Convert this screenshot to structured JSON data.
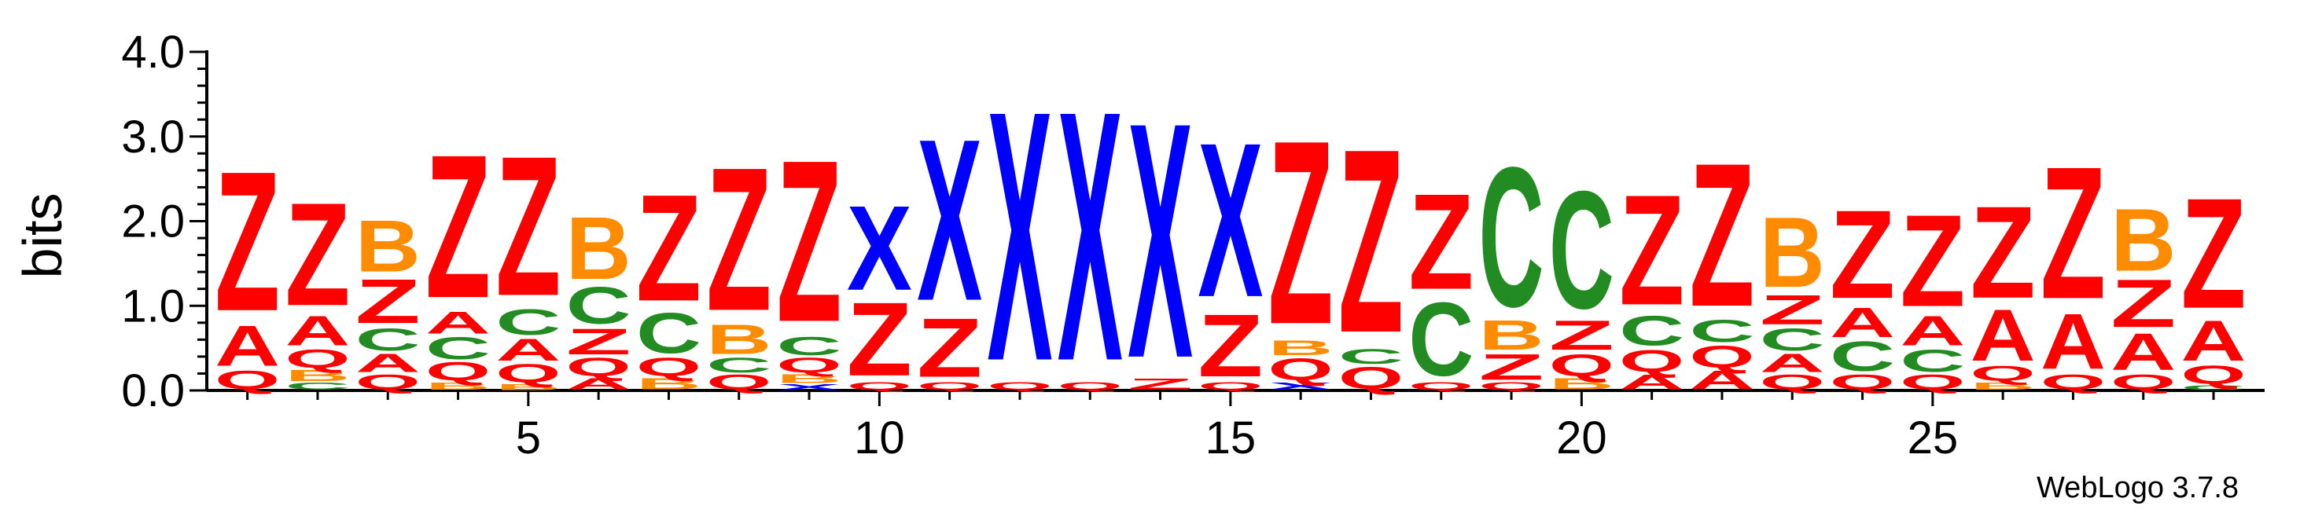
{
  "chart_data": {
    "type": "sequence-logo",
    "ylabel": "bits",
    "xlabel": "",
    "ylim": [
      0,
      4
    ],
    "yticks": [
      "0.0",
      "1.0",
      "2.0",
      "3.0",
      "4.0"
    ],
    "xticks": [
      5,
      10,
      15,
      20,
      25
    ],
    "positions": [
      {
        "pos": 1,
        "stack": [
          [
            "Q",
            0.25
          ],
          [
            "A",
            0.55
          ],
          [
            "Z",
            1.9
          ]
        ]
      },
      {
        "pos": 2,
        "stack": [
          [
            "C",
            0.1
          ],
          [
            "B",
            0.15
          ],
          [
            "Q",
            0.25
          ],
          [
            "A",
            0.4
          ],
          [
            "Z",
            1.4
          ]
        ]
      },
      {
        "pos": 3,
        "stack": [
          [
            "Q",
            0.2
          ],
          [
            "A",
            0.25
          ],
          [
            "C",
            0.3
          ],
          [
            "Z",
            0.6
          ],
          [
            "B",
            0.7
          ]
        ]
      },
      {
        "pos": 4,
        "stack": [
          [
            "B",
            0.1
          ],
          [
            "Q",
            0.25
          ],
          [
            "C",
            0.3
          ],
          [
            "A",
            0.3
          ],
          [
            "Z",
            1.95
          ]
        ]
      },
      {
        "pos": 5,
        "stack": [
          [
            "B",
            0.08
          ],
          [
            "Q",
            0.25
          ],
          [
            "A",
            0.3
          ],
          [
            "C",
            0.35
          ],
          [
            "Z",
            1.9
          ]
        ]
      },
      {
        "pos": 6,
        "stack": [
          [
            "A",
            0.15
          ],
          [
            "Q",
            0.25
          ],
          [
            "Z",
            0.35
          ],
          [
            "C",
            0.5
          ],
          [
            "B",
            0.85
          ]
        ]
      },
      {
        "pos": 7,
        "stack": [
          [
            "B",
            0.15
          ],
          [
            "Q",
            0.25
          ],
          [
            "C",
            0.55
          ],
          [
            "Z",
            1.45
          ]
        ]
      },
      {
        "pos": 8,
        "stack": [
          [
            "Q",
            0.2
          ],
          [
            "C",
            0.2
          ],
          [
            "B",
            0.4
          ],
          [
            "Z",
            1.95
          ]
        ]
      },
      {
        "pos": 9,
        "stack": [
          [
            "X",
            0.08
          ],
          [
            "B",
            0.12
          ],
          [
            "Q",
            0.2
          ],
          [
            "C",
            0.25
          ],
          [
            "Z",
            2.2
          ]
        ]
      },
      {
        "pos": 10,
        "stack": [
          [
            "Q",
            0.1
          ],
          [
            "Z",
            1.0
          ],
          [
            "X",
            1.15
          ]
        ]
      },
      {
        "pos": 11,
        "stack": [
          [
            "Q",
            0.1
          ],
          [
            "Z",
            0.8
          ],
          [
            "X",
            2.2
          ]
        ]
      },
      {
        "pos": 12,
        "stack": [
          [
            "Q",
            0.1
          ],
          [
            "X",
            3.4
          ]
        ]
      },
      {
        "pos": 13,
        "stack": [
          [
            "Q",
            0.1
          ],
          [
            "X",
            3.4
          ]
        ]
      },
      {
        "pos": 14,
        "stack": [
          [
            "Z",
            0.15
          ],
          [
            "X",
            3.2
          ]
        ]
      },
      {
        "pos": 15,
        "stack": [
          [
            "Q",
            0.1
          ],
          [
            "Z",
            0.85
          ],
          [
            "X",
            2.1
          ]
        ]
      },
      {
        "pos": 16,
        "stack": [
          [
            "X",
            0.1
          ],
          [
            "Q",
            0.3
          ],
          [
            "B",
            0.2
          ],
          [
            "Z",
            2.5
          ]
        ]
      },
      {
        "pos": 17,
        "stack": [
          [
            "Q",
            0.3
          ],
          [
            "C",
            0.2
          ],
          [
            "Z",
            2.5
          ]
        ]
      },
      {
        "pos": 18,
        "stack": [
          [
            "Q",
            0.1
          ],
          [
            "C",
            1.0
          ],
          [
            "Z",
            1.3
          ]
        ]
      },
      {
        "pos": 19,
        "stack": [
          [
            "Q",
            0.1
          ],
          [
            "Z",
            0.35
          ],
          [
            "B",
            0.4
          ],
          [
            "C",
            1.9
          ]
        ]
      },
      {
        "pos": 20,
        "stack": [
          [
            "B",
            0.15
          ],
          [
            "Q",
            0.3
          ],
          [
            "Z",
            0.4
          ],
          [
            "C",
            1.6
          ]
        ]
      },
      {
        "pos": 21,
        "stack": [
          [
            "A",
            0.2
          ],
          [
            "Q",
            0.3
          ],
          [
            "C",
            0.4
          ],
          [
            "Z",
            1.5
          ]
        ]
      },
      {
        "pos": 22,
        "stack": [
          [
            "A",
            0.25
          ],
          [
            "Q",
            0.3
          ],
          [
            "C",
            0.3
          ],
          [
            "Z",
            1.95
          ]
        ]
      },
      {
        "pos": 23,
        "stack": [
          [
            "Q",
            0.2
          ],
          [
            "A",
            0.25
          ],
          [
            "C",
            0.3
          ],
          [
            "Z",
            0.4
          ],
          [
            "B",
            0.95
          ]
        ]
      },
      {
        "pos": 24,
        "stack": [
          [
            "Q",
            0.2
          ],
          [
            "C",
            0.4
          ],
          [
            "A",
            0.4
          ],
          [
            "Z",
            1.2
          ]
        ]
      },
      {
        "pos": 25,
        "stack": [
          [
            "Q",
            0.2
          ],
          [
            "C",
            0.3
          ],
          [
            "A",
            0.4
          ],
          [
            "Z",
            1.25
          ]
        ]
      },
      {
        "pos": 26,
        "stack": [
          [
            "B",
            0.1
          ],
          [
            "Q",
            0.2
          ],
          [
            "A",
            0.7
          ],
          [
            "Z",
            1.25
          ]
        ]
      },
      {
        "pos": 27,
        "stack": [
          [
            "Q",
            0.2
          ],
          [
            "A",
            0.75
          ],
          [
            "Z",
            1.8
          ]
        ]
      },
      {
        "pos": 28,
        "stack": [
          [
            "Q",
            0.2
          ],
          [
            "A",
            0.5
          ],
          [
            "Z",
            0.65
          ],
          [
            "B",
            0.85
          ]
        ]
      },
      {
        "pos": 29,
        "stack": [
          [
            "C",
            0.06
          ],
          [
            "Q",
            0.25
          ],
          [
            "A",
            0.55
          ],
          [
            "Z",
            1.5
          ]
        ]
      }
    ],
    "colors": {
      "X": "#0000ff",
      "Z": "#ff0000",
      "A": "#ff0000",
      "Q": "#ff0000",
      "C": "#228b22",
      "B": "#ff8c00"
    },
    "legend": "none",
    "grid": false
  },
  "credit": "WebLogo 3.7.8"
}
